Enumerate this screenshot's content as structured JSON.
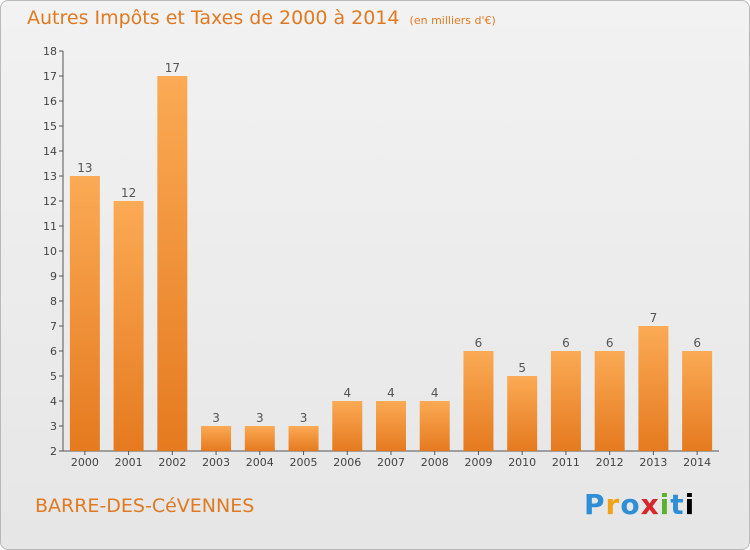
{
  "header": {
    "title": "Autres Impôts et Taxes de 2000 à 2014",
    "subtitle": "(en milliers d'€)"
  },
  "footer": {
    "commune": "BARRE-DES-CéVENNES",
    "logo": "Proxiti"
  },
  "colors": {
    "bar_top": "#fbaa55",
    "bar_bottom": "#e57a1f",
    "text_accent": "#e07a22",
    "axis": "#555555"
  },
  "chart_data": {
    "type": "bar",
    "title": "Autres Impôts et Taxes de 2000 à 2014",
    "categories": [
      "2000",
      "2001",
      "2002",
      "2003",
      "2004",
      "2005",
      "2006",
      "2007",
      "2008",
      "2009",
      "2010",
      "2011",
      "2012",
      "2013",
      "2014"
    ],
    "values": [
      13,
      12,
      17,
      3,
      3,
      3,
      4,
      4,
      4,
      6,
      5,
      6,
      6,
      7,
      6
    ],
    "ylim": [
      2,
      18
    ],
    "yticks": [
      "2",
      "3",
      "4",
      "5",
      "6",
      "7",
      "8",
      "9",
      "10",
      "11",
      "12",
      "13",
      "14",
      "15",
      "16",
      "17",
      "18"
    ],
    "grid": false,
    "xlabel": "",
    "ylabel": ""
  }
}
